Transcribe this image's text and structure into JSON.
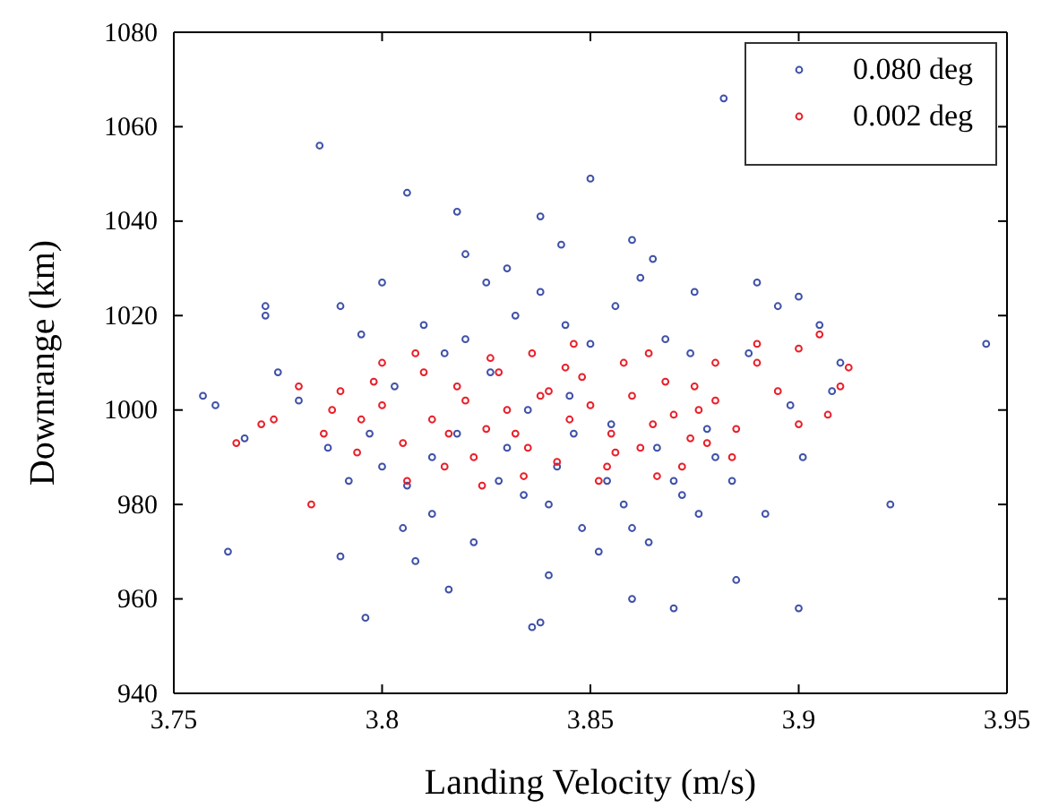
{
  "chart_data": {
    "type": "scatter",
    "xlabel": "Landing Velocity (m/s)",
    "ylabel": "Downrange (km)",
    "xlim": [
      3.75,
      3.95
    ],
    "ylim": [
      940,
      1080
    ],
    "xticks": [
      3.75,
      3.8,
      3.85,
      3.9,
      3.95
    ],
    "yticks": [
      940,
      960,
      980,
      1000,
      1020,
      1040,
      1060,
      1080
    ],
    "grid": false,
    "legend": "top right",
    "marker": "circle",
    "series": [
      {
        "name": "0.080 deg",
        "color": "#3f51a8",
        "x": [
          3.785,
          3.882,
          3.945,
          3.922,
          3.763,
          3.757,
          3.76,
          3.772,
          3.772,
          3.78,
          3.806,
          3.818,
          3.85,
          3.838,
          3.796,
          3.816,
          3.836,
          3.838,
          3.87,
          3.9,
          3.86,
          3.885,
          3.84,
          3.808,
          3.79,
          3.901,
          3.898,
          3.908,
          3.91,
          3.905,
          3.895,
          3.9,
          3.89,
          3.86,
          3.865,
          3.875,
          3.83,
          3.82,
          3.8,
          3.795,
          3.79,
          3.81,
          3.825,
          3.805,
          3.812,
          3.822,
          3.828,
          3.834,
          3.842,
          3.848,
          3.852,
          3.858,
          3.864,
          3.87,
          3.876,
          3.88,
          3.815,
          3.82,
          3.826,
          3.832,
          3.838,
          3.844,
          3.85,
          3.856,
          3.862,
          3.868,
          3.874,
          3.8,
          3.806,
          3.812,
          3.818,
          3.83,
          3.84,
          3.846,
          3.854,
          3.86,
          3.866,
          3.872,
          3.878,
          3.884,
          3.892,
          3.888,
          3.803,
          3.797,
          3.792,
          3.787,
          3.775,
          3.767,
          3.835,
          3.845,
          3.855,
          3.843
        ],
        "values": [
          1056,
          1066,
          1014,
          980,
          970,
          1003,
          1001,
          1020,
          1022,
          1002,
          1046,
          1042,
          1049,
          1041,
          956,
          962,
          954,
          955,
          958,
          958,
          960,
          964,
          965,
          968,
          969,
          990,
          1001,
          1004,
          1010,
          1018,
          1022,
          1024,
          1027,
          1036,
          1032,
          1025,
          1030,
          1033,
          1027,
          1016,
          1022,
          1018,
          1027,
          975,
          978,
          972,
          985,
          982,
          988,
          975,
          970,
          980,
          972,
          985,
          978,
          990,
          1012,
          1015,
          1008,
          1020,
          1025,
          1018,
          1014,
          1022,
          1028,
          1015,
          1012,
          988,
          984,
          990,
          995,
          992,
          980,
          995,
          985,
          975,
          992,
          982,
          996,
          985,
          978,
          1012,
          1005,
          995,
          985,
          992,
          1008,
          994,
          1000,
          1003,
          997,
          1035
        ]
      },
      {
        "name": "0.002 deg",
        "color": "#e8202a",
        "x": [
          3.765,
          3.771,
          3.774,
          3.78,
          3.783,
          3.79,
          3.795,
          3.8,
          3.805,
          3.81,
          3.815,
          3.82,
          3.825,
          3.83,
          3.835,
          3.84,
          3.845,
          3.85,
          3.855,
          3.86,
          3.865,
          3.87,
          3.875,
          3.88,
          3.885,
          3.89,
          3.895,
          3.9,
          3.905,
          3.91,
          3.912,
          3.907,
          3.9,
          3.89,
          3.88,
          3.812,
          3.818,
          3.822,
          3.828,
          3.832,
          3.836,
          3.842,
          3.848,
          3.852,
          3.858,
          3.862,
          3.868,
          3.872,
          3.878,
          3.8,
          3.806,
          3.788,
          3.794,
          3.826,
          3.834,
          3.844,
          3.854,
          3.864,
          3.874,
          3.884,
          3.816,
          3.824,
          3.838,
          3.846,
          3.856,
          3.866,
          3.876,
          3.786,
          3.798,
          3.808
        ],
        "values": [
          993,
          997,
          998,
          1005,
          980,
          1004,
          998,
          1010,
          993,
          1008,
          988,
          1002,
          996,
          1000,
          992,
          1004,
          998,
          1001,
          995,
          1003,
          997,
          999,
          1005,
          1002,
          996,
          1014,
          1004,
          997,
          1016,
          1005,
          1009,
          999,
          1013,
          1010,
          1010,
          998,
          1005,
          990,
          1008,
          995,
          1012,
          989,
          1007,
          985,
          1010,
          992,
          1006,
          988,
          993,
          1001,
          985,
          1000,
          991,
          1011,
          986,
          1009,
          988,
          1012,
          994,
          990,
          995,
          984,
          1003,
          1014,
          991,
          986,
          1000,
          995,
          1006,
          1012
        ]
      }
    ]
  }
}
